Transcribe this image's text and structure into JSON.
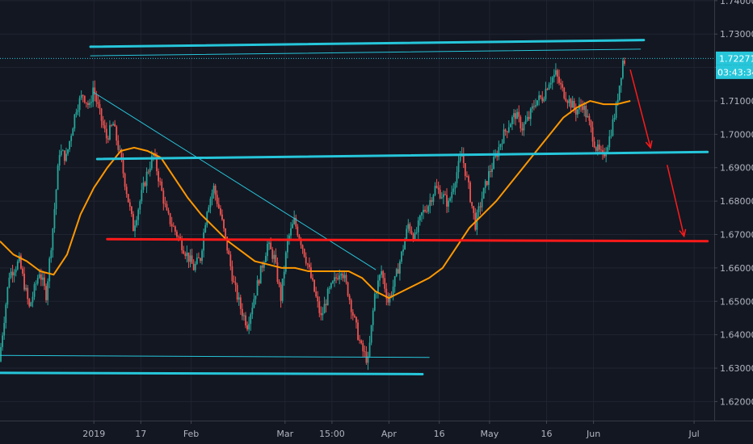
{
  "chart_data": {
    "type": "candlestick",
    "y_ticks": [
      "1.74000",
      "1.73000",
      "1.72000",
      "1.71000",
      "1.70000",
      "1.69000",
      "1.68000",
      "1.67000",
      "1.66000",
      "1.65000",
      "1.64000",
      "1.63000",
      "1.62000"
    ],
    "x_ticks": [
      {
        "label": "2019",
        "day": 0
      },
      {
        "label": "17",
        "day": 14
      },
      {
        "label": "Feb",
        "day": 29
      },
      {
        "label": "Mar",
        "day": 57
      },
      {
        "label": "15:00",
        "day": 71
      },
      {
        "label": "Apr",
        "day": 88
      },
      {
        "label": "16",
        "day": 103
      },
      {
        "label": "May",
        "day": 118
      },
      {
        "label": "16",
        "day": 135
      },
      {
        "label": "Jun",
        "day": 149
      },
      {
        "label": "Jul",
        "day": 179
      }
    ],
    "x_range_days": [
      -28,
      185
    ],
    "ylim": [
      1.6143,
      1.7402
    ],
    "current_price": {
      "label": "1.72271",
      "value": 1.72271,
      "color": "#26c6da"
    },
    "countdown": {
      "label": "03:43:34",
      "color": "#26c6da"
    },
    "candle_colors": {
      "up": "#26a69a",
      "down": "#ef5350"
    },
    "price_path": [
      [
        -28,
        1.632
      ],
      [
        -25,
        1.658
      ],
      [
        -22,
        1.662
      ],
      [
        -19,
        1.648
      ],
      [
        -16,
        1.659
      ],
      [
        -14,
        1.652
      ],
      [
        -12,
        1.672
      ],
      [
        -10,
        1.695
      ],
      [
        -8,
        1.693
      ],
      [
        -5,
        1.708
      ],
      [
        -3,
        1.712
      ],
      [
        -1,
        1.708
      ],
      [
        0,
        1.714
      ],
      [
        2,
        1.706
      ],
      [
        4,
        1.699
      ],
      [
        6,
        1.703
      ],
      [
        8,
        1.694
      ],
      [
        10,
        1.683
      ],
      [
        12,
        1.672
      ],
      [
        14,
        1.68
      ],
      [
        16,
        1.688
      ],
      [
        18,
        1.694
      ],
      [
        20,
        1.685
      ],
      [
        22,
        1.676
      ],
      [
        24,
        1.672
      ],
      [
        26,
        1.668
      ],
      [
        28,
        1.664
      ],
      [
        30,
        1.66
      ],
      [
        32,
        1.663
      ],
      [
        34,
        1.678
      ],
      [
        36,
        1.684
      ],
      [
        38,
        1.676
      ],
      [
        40,
        1.666
      ],
      [
        42,
        1.655
      ],
      [
        44,
        1.648
      ],
      [
        46,
        1.643
      ],
      [
        48,
        1.651
      ],
      [
        50,
        1.659
      ],
      [
        52,
        1.667
      ],
      [
        54,
        1.663
      ],
      [
        56,
        1.651
      ],
      [
        58,
        1.668
      ],
      [
        60,
        1.674
      ],
      [
        62,
        1.668
      ],
      [
        64,
        1.661
      ],
      [
        66,
        1.653
      ],
      [
        68,
        1.645
      ],
      [
        70,
        1.652
      ],
      [
        72,
        1.656
      ],
      [
        74,
        1.66
      ],
      [
        76,
        1.653
      ],
      [
        78,
        1.644
      ],
      [
        80,
        1.636
      ],
      [
        82,
        1.632
      ],
      [
        84,
        1.652
      ],
      [
        86,
        1.659
      ],
      [
        88,
        1.65
      ],
      [
        90,
        1.656
      ],
      [
        92,
        1.664
      ],
      [
        94,
        1.673
      ],
      [
        96,
        1.669
      ],
      [
        98,
        1.676
      ],
      [
        100,
        1.679
      ],
      [
        102,
        1.684
      ],
      [
        104,
        1.682
      ],
      [
        106,
        1.679
      ],
      [
        108,
        1.687
      ],
      [
        110,
        1.694
      ],
      [
        112,
        1.684
      ],
      [
        114,
        1.673
      ],
      [
        116,
        1.681
      ],
      [
        118,
        1.688
      ],
      [
        120,
        1.693
      ],
      [
        122,
        1.699
      ],
      [
        124,
        1.703
      ],
      [
        126,
        1.706
      ],
      [
        128,
        1.702
      ],
      [
        130,
        1.705
      ],
      [
        132,
        1.71
      ],
      [
        134,
        1.711
      ],
      [
        136,
        1.716
      ],
      [
        138,
        1.718
      ],
      [
        140,
        1.713
      ],
      [
        142,
        1.71
      ],
      [
        144,
        1.707
      ],
      [
        146,
        1.709
      ],
      [
        148,
        1.703
      ],
      [
        150,
        1.696
      ],
      [
        152,
        1.693
      ],
      [
        154,
        1.699
      ],
      [
        156,
        1.708
      ],
      [
        158,
        1.722
      ]
    ],
    "moving_average": [
      [
        -28,
        1.668
      ],
      [
        -24,
        1.664
      ],
      [
        -20,
        1.662
      ],
      [
        -16,
        1.659
      ],
      [
        -12,
        1.658
      ],
      [
        -8,
        1.664
      ],
      [
        -4,
        1.676
      ],
      [
        0,
        1.684
      ],
      [
        4,
        1.69
      ],
      [
        8,
        1.695
      ],
      [
        12,
        1.696
      ],
      [
        16,
        1.695
      ],
      [
        20,
        1.693
      ],
      [
        24,
        1.687
      ],
      [
        28,
        1.681
      ],
      [
        32,
        1.676
      ],
      [
        36,
        1.672
      ],
      [
        40,
        1.668
      ],
      [
        44,
        1.665
      ],
      [
        48,
        1.662
      ],
      [
        52,
        1.661
      ],
      [
        56,
        1.66
      ],
      [
        60,
        1.66
      ],
      [
        64,
        1.659
      ],
      [
        68,
        1.659
      ],
      [
        72,
        1.659
      ],
      [
        76,
        1.659
      ],
      [
        80,
        1.657
      ],
      [
        84,
        1.653
      ],
      [
        88,
        1.651
      ],
      [
        92,
        1.653
      ],
      [
        96,
        1.655
      ],
      [
        100,
        1.657
      ],
      [
        104,
        1.66
      ],
      [
        108,
        1.666
      ],
      [
        112,
        1.672
      ],
      [
        116,
        1.676
      ],
      [
        120,
        1.68
      ],
      [
        124,
        1.685
      ],
      [
        128,
        1.69
      ],
      [
        132,
        1.695
      ],
      [
        136,
        1.7
      ],
      [
        140,
        1.705
      ],
      [
        144,
        1.708
      ],
      [
        148,
        1.71
      ],
      [
        152,
        1.709
      ],
      [
        156,
        1.709
      ],
      [
        160,
        1.71
      ]
    ],
    "drawings": [
      {
        "kind": "line",
        "color": "#26c6da",
        "width": 3,
        "from": [
          -1,
          1.7262
        ],
        "to": [
          164,
          1.7282
        ]
      },
      {
        "kind": "line",
        "color": "#26c6da",
        "width": 1,
        "from": [
          -1,
          1.7235
        ],
        "to": [
          163,
          1.7255
        ]
      },
      {
        "kind": "line",
        "color": "#26c6da",
        "width": 3,
        "from": [
          1,
          1.6926
        ],
        "to": [
          183,
          1.6947
        ]
      },
      {
        "kind": "line",
        "color": "#26c6da",
        "width": 1,
        "from": [
          0,
          1.7125
        ],
        "to": [
          84,
          1.6595
        ]
      },
      {
        "kind": "line",
        "color": "#26c6da",
        "width": 1,
        "from": [
          -28,
          1.6338
        ],
        "to": [
          100,
          1.6332
        ]
      },
      {
        "kind": "line",
        "color": "#26c6da",
        "width": 3,
        "from": [
          -28,
          1.6286
        ],
        "to": [
          98,
          1.6282
        ]
      },
      {
        "kind": "line",
        "color": "#ff1a1a",
        "width": 3,
        "from": [
          4,
          1.6686
        ],
        "to": [
          183,
          1.668
        ]
      },
      {
        "kind": "arrow",
        "color": "#ff1a1a",
        "width": 1.5,
        "from": [
          160,
          1.7192
        ],
        "to": [
          166,
          1.696
        ]
      },
      {
        "kind": "arrow",
        "color": "#ff1a1a",
        "width": 1.5,
        "from": [
          171,
          1.6907
        ],
        "to": [
          176,
          1.6695
        ]
      }
    ]
  }
}
